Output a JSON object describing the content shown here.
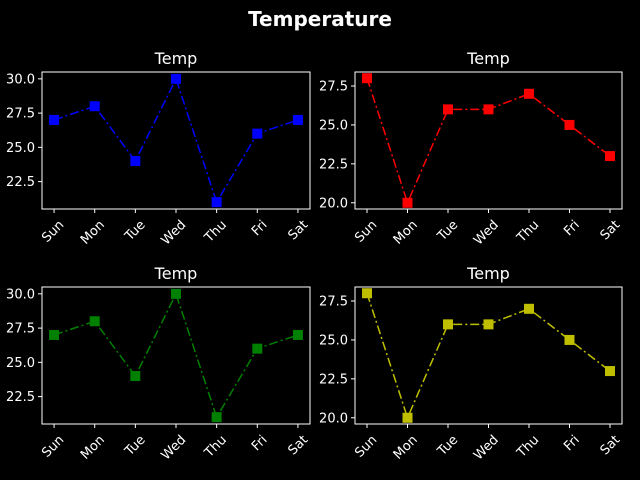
{
  "suptitle": "Temperature",
  "colors": {
    "background": "#000000",
    "axes": "#ffffff",
    "text": "#ffffff"
  },
  "chart_data": [
    {
      "type": "line",
      "title": "Temp",
      "categories": [
        "Sun",
        "Mon",
        "Tue",
        "Wed",
        "Thu",
        "Fri",
        "Sat"
      ],
      "series": [
        {
          "values": [
            27,
            28,
            24,
            30,
            21,
            26,
            27
          ],
          "color": "#0000ff",
          "line_style": "dash-dot",
          "marker": "square"
        }
      ],
      "ylim": [
        20.5,
        30.5
      ],
      "yticks": [
        22.5,
        25.0,
        27.5,
        30.0
      ],
      "ytick_labels": [
        "22.5",
        "25.0",
        "27.5",
        "30.0"
      ],
      "grid": false
    },
    {
      "type": "line",
      "title": "Temp",
      "categories": [
        "Sun",
        "Mon",
        "Tue",
        "Wed",
        "Thu",
        "Fri",
        "Sat"
      ],
      "series": [
        {
          "values": [
            28,
            20,
            26,
            26,
            27,
            25,
            23
          ],
          "color": "#ff0000",
          "line_style": "dash-dot",
          "marker": "square"
        }
      ],
      "ylim": [
        19.6,
        28.4
      ],
      "yticks": [
        20.0,
        22.5,
        25.0,
        27.5
      ],
      "ytick_labels": [
        "20.0",
        "22.5",
        "25.0",
        "27.5"
      ],
      "grid": false
    },
    {
      "type": "line",
      "title": "Temp",
      "categories": [
        "Sun",
        "Mon",
        "Tue",
        "Wed",
        "Thu",
        "Fri",
        "Sat"
      ],
      "series": [
        {
          "values": [
            27,
            28,
            24,
            30,
            21,
            26,
            27
          ],
          "color": "#008000",
          "line_style": "dash-dot",
          "marker": "square"
        }
      ],
      "ylim": [
        20.5,
        30.5
      ],
      "yticks": [
        22.5,
        25.0,
        27.5,
        30.0
      ],
      "ytick_labels": [
        "22.5",
        "25.0",
        "27.5",
        "30.0"
      ],
      "grid": false
    },
    {
      "type": "line",
      "title": "Temp",
      "categories": [
        "Sun",
        "Mon",
        "Tue",
        "Wed",
        "Thu",
        "Fri",
        "Sat"
      ],
      "series": [
        {
          "values": [
            28,
            20,
            26,
            26,
            27,
            25,
            23
          ],
          "color": "#bfbf00",
          "line_style": "dash-dot",
          "marker": "square"
        }
      ],
      "ylim": [
        19.6,
        28.4
      ],
      "yticks": [
        20.0,
        22.5,
        25.0,
        27.5
      ],
      "ytick_labels": [
        "20.0",
        "22.5",
        "25.0",
        "27.5"
      ],
      "grid": false
    }
  ]
}
